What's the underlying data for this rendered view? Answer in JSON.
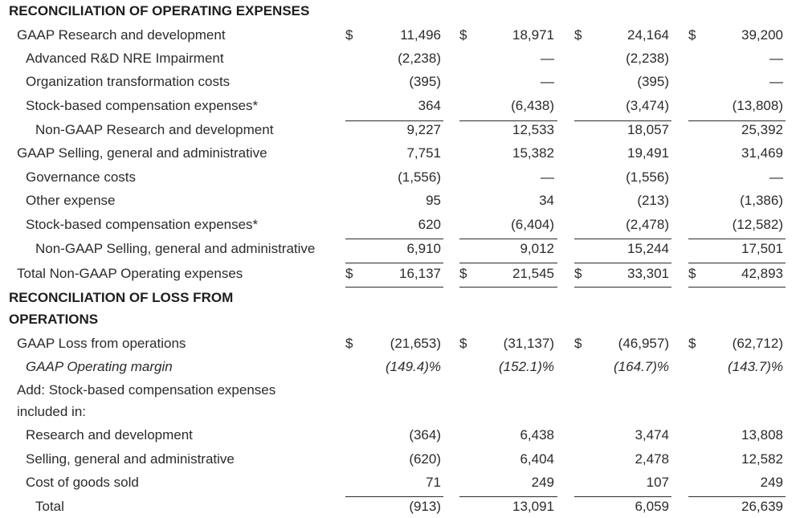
{
  "rows": [
    {
      "label": "RECONCILIATION OF OPERATING EXPENSES",
      "style": "head",
      "indent": 0,
      "values": [
        "",
        "",
        "",
        ""
      ],
      "dollars": false
    },
    {
      "label": "GAAP Research and development",
      "style": "normal",
      "indent": 1,
      "values": [
        "11,496",
        "18,971",
        "24,164",
        "39,200"
      ],
      "dollars": true
    },
    {
      "label": "Advanced R&D NRE Impairment",
      "style": "normal",
      "indent": 2,
      "values": [
        "(2,238)",
        "—",
        "(2,238)",
        "—"
      ],
      "dollars": false
    },
    {
      "label": "Organization transformation costs",
      "style": "normal",
      "indent": 2,
      "values": [
        "(395)",
        "—",
        "(395)",
        "—"
      ],
      "dollars": false
    },
    {
      "label": "Stock-based compensation expenses*",
      "style": "normal",
      "indent": 2,
      "values": [
        "364",
        "(6,438)",
        "(3,474)",
        "(13,808)"
      ],
      "dollars": false
    },
    {
      "label": "Non-GAAP Research and development",
      "style": "normal",
      "indent": 3,
      "values": [
        "9,227",
        "12,533",
        "18,057",
        "25,392"
      ],
      "dollars": false
    },
    {
      "label": "GAAP Selling, general and administrative",
      "style": "normal",
      "indent": 1,
      "values": [
        "7,751",
        "15,382",
        "19,491",
        "31,469"
      ],
      "dollars": false
    },
    {
      "label": "Governance costs",
      "style": "normal",
      "indent": 2,
      "values": [
        "(1,556)",
        "—",
        "(1,556)",
        "—"
      ],
      "dollars": false
    },
    {
      "label": "Other expense",
      "style": "normal",
      "indent": 2,
      "values": [
        "95",
        "34",
        "(213)",
        "(1,386)"
      ],
      "dollars": false
    },
    {
      "label": "Stock-based compensation expenses*",
      "style": "normal",
      "indent": 2,
      "values": [
        "620",
        "(6,404)",
        "(2,478)",
        "(12,582)"
      ],
      "dollars": false
    },
    {
      "label": "Non-GAAP Selling, general and administrative",
      "style": "normal",
      "indent": 3,
      "values": [
        "6,910",
        "9,012",
        "15,244",
        "17,501"
      ],
      "dollars": false
    },
    {
      "label": "Total Non-GAAP Operating expenses",
      "style": "normal",
      "indent": 1,
      "values": [
        "16,137",
        "21,545",
        "33,301",
        "42,893"
      ],
      "dollars": true
    },
    {
      "label": "RECONCILIATION OF LOSS FROM",
      "style": "head",
      "indent": 0,
      "values": [
        "",
        "",
        "",
        ""
      ],
      "dollars": false
    },
    {
      "label": "OPERATIONS",
      "style": "head",
      "indent": 0,
      "values": [
        "",
        "",
        "",
        ""
      ],
      "dollars": false
    },
    {
      "label": "GAAP Loss from operations",
      "style": "normal",
      "indent": 1,
      "values": [
        "(21,653)",
        "(31,137)",
        "(46,957)",
        "(62,712)"
      ],
      "dollars": true
    },
    {
      "label": "GAAP Operating margin",
      "style": "italic",
      "indent": 2,
      "values": [
        "(149.4)%",
        "(152.1)%",
        "(164.7)%",
        "(143.7)%"
      ],
      "dollars": false
    },
    {
      "label": "Add: Stock-based compensation expenses",
      "style": "normal",
      "indent": 1,
      "values": [
        "",
        "",
        "",
        ""
      ],
      "dollars": false
    },
    {
      "label": "included in:",
      "style": "normal",
      "indent": 1,
      "values": [
        "",
        "",
        "",
        ""
      ],
      "dollars": false
    },
    {
      "label": "Research and development",
      "style": "normal",
      "indent": 2,
      "values": [
        "(364)",
        "6,438",
        "3,474",
        "13,808"
      ],
      "dollars": false
    },
    {
      "label": "Selling, general and administrative",
      "style": "normal",
      "indent": 2,
      "values": [
        "(620)",
        "6,404",
        "2,478",
        "12,582"
      ],
      "dollars": false
    },
    {
      "label": "Cost of goods sold",
      "style": "normal",
      "indent": 2,
      "values": [
        "71",
        "249",
        "107",
        "249"
      ],
      "dollars": false
    },
    {
      "label": "Total",
      "style": "normal",
      "indent": 3,
      "values": [
        "(913)",
        "13,091",
        "6,059",
        "26,639"
      ],
      "dollars": false
    }
  ],
  "currency_symbol": "$"
}
